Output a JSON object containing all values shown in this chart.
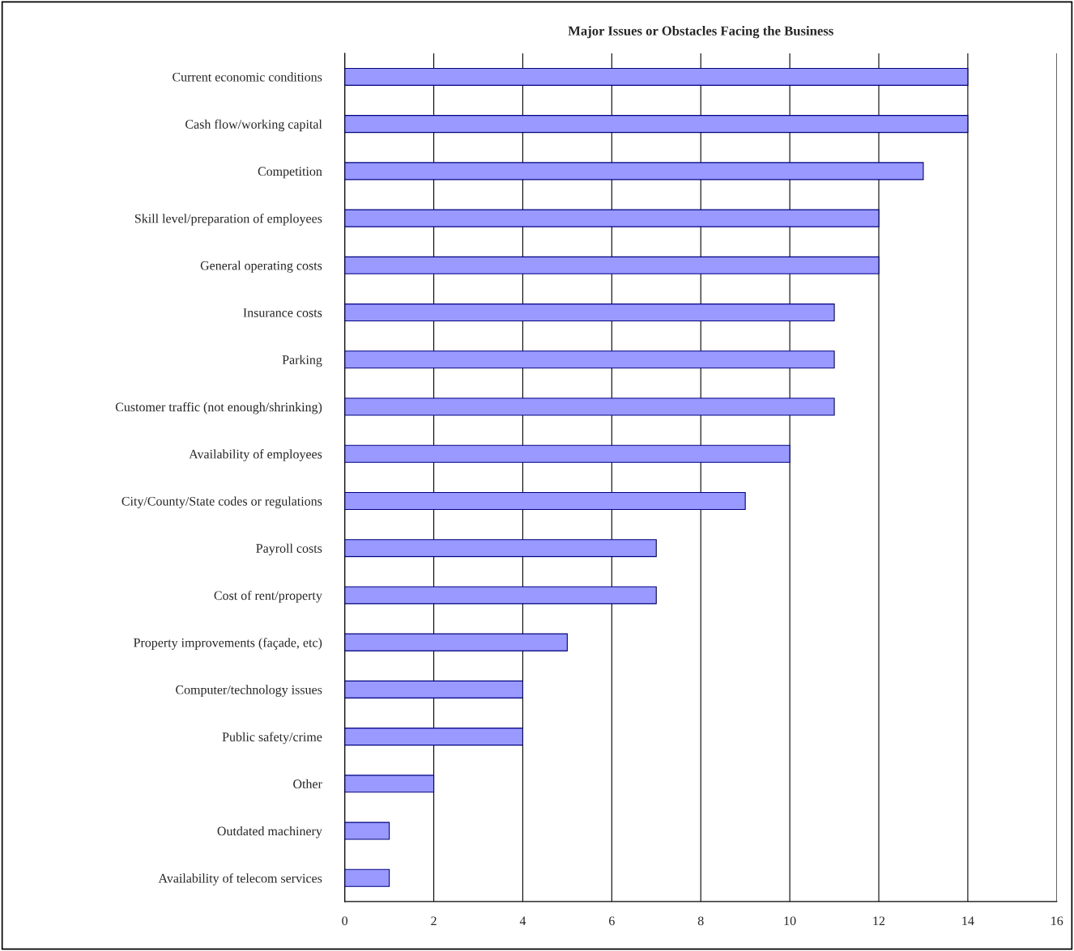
{
  "chart_data": {
    "type": "bar",
    "orientation": "horizontal",
    "title": "Major Issues or Obstacles Facing the Business",
    "categories": [
      "Current economic conditions",
      "Cash flow/working capital",
      "Competition",
      "Skill level/preparation of employees",
      "General operating costs",
      "Insurance costs",
      "Parking",
      "Customer traffic (not enough/shrinking)",
      "Availability of employees",
      "City/County/State codes or regulations",
      "Payroll costs",
      "Cost of rent/property",
      "Property improvements (façade, etc)",
      "Computer/technology issues",
      "Public safety/crime",
      "Other",
      "Outdated machinery",
      "Availability of telecom services"
    ],
    "values": [
      14,
      14,
      13,
      12,
      12,
      11,
      11,
      11,
      10,
      9,
      7,
      7,
      5,
      4,
      4,
      2,
      1,
      1
    ],
    "color": "#9999ff",
    "xlim": [
      0,
      16
    ],
    "xticks": [
      0,
      2,
      4,
      6,
      8,
      10,
      12,
      14,
      16
    ],
    "grid": "x",
    "legend": false
  }
}
